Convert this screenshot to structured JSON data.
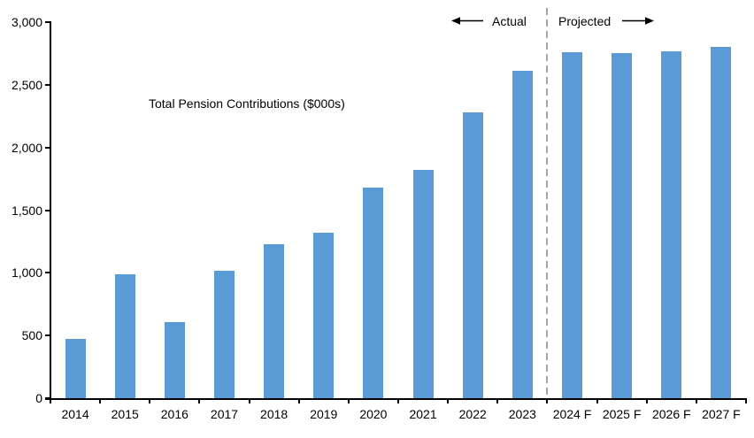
{
  "chart": {
    "colors": {
      "bar": "#5B9BD5",
      "divider": "#A6A6A6",
      "axis": "#000000",
      "text": "#000000",
      "background": "#FFFFFF"
    }
  },
  "chart_data": {
    "type": "bar",
    "title": "",
    "series_name": "Total Pension Contributions ($000s)",
    "categories": [
      "2014",
      "2015",
      "2016",
      "2017",
      "2018",
      "2019",
      "2020",
      "2021",
      "2022",
      "2023",
      "2024 F",
      "2025 F",
      "2026 F",
      "2027 F"
    ],
    "values": [
      470,
      990,
      610,
      1020,
      1230,
      1320,
      1680,
      1820,
      2280,
      2610,
      2760,
      2750,
      2770,
      2800
    ],
    "xlabel": "",
    "ylabel": "",
    "ylim": [
      0,
      3000
    ],
    "yticks": [
      0,
      500,
      1000,
      1500,
      2000,
      2500,
      3000
    ],
    "ytick_labels": [
      "0",
      "500",
      "1,000",
      "1,500",
      "2,000",
      "2,500",
      "3,000"
    ],
    "grid": false,
    "legend_entries": [
      "Total Pension Contributions ($000s)"
    ],
    "legend_position": "upper-left-of-plot",
    "divider_after_index": 10,
    "annotations": [
      {
        "text": "Actual",
        "side": "left-of-divider",
        "applies_to": "2014-2023"
      },
      {
        "text": "Projected",
        "side": "right-of-divider",
        "applies_to": "2024 F-2027 F"
      }
    ]
  }
}
